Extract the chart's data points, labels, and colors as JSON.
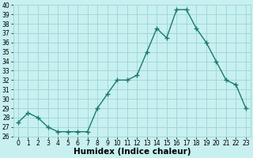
{
  "x": [
    0,
    1,
    2,
    3,
    4,
    5,
    6,
    7,
    8,
    9,
    10,
    11,
    12,
    13,
    14,
    15,
    16,
    17,
    18,
    19,
    20,
    21,
    22,
    23
  ],
  "y": [
    27.5,
    28.5,
    28.0,
    27.0,
    26.5,
    26.5,
    26.5,
    26.5,
    29.0,
    30.5,
    32.0,
    32.0,
    32.5,
    35.0,
    37.5,
    36.5,
    39.5,
    39.5,
    37.5,
    36.0,
    34.0,
    32.0,
    31.5,
    29.0
  ],
  "line_color": "#1a7a6e",
  "marker": "+",
  "marker_size": 4.0,
  "background_color": "#c8f0f0",
  "grid_color": "#a0d8d8",
  "xlabel": "Humidex (Indice chaleur)",
  "ylabel": "",
  "xlim": [
    -0.5,
    23.5
  ],
  "ylim": [
    26,
    40
  ],
  "yticks": [
    26,
    27,
    28,
    29,
    30,
    31,
    32,
    33,
    34,
    35,
    36,
    37,
    38,
    39,
    40
  ],
  "xticks": [
    0,
    1,
    2,
    3,
    4,
    5,
    6,
    7,
    8,
    9,
    10,
    11,
    12,
    13,
    14,
    15,
    16,
    17,
    18,
    19,
    20,
    21,
    22,
    23
  ],
  "tick_fontsize": 5.5,
  "xlabel_fontsize": 7.5,
  "linewidth": 1.0,
  "marker_linewidth": 1.0
}
